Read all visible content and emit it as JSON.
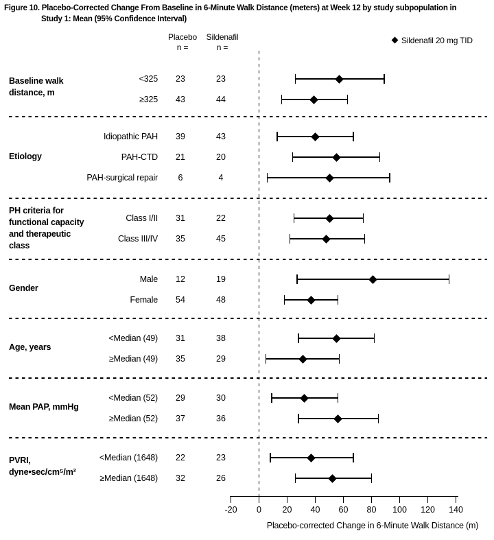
{
  "title": {
    "line1": "Figure 10. Placebo-Corrected Change From Baseline in 6-Minute Walk Distance (meters) at Week 12 by study subpopulation in",
    "line2": "Study 1: Mean (95% Confidence Interval)"
  },
  "legend": {
    "marker_icon": "diamond-icon",
    "label": "Sildenafil 20 mg TID"
  },
  "columns": {
    "placebo": {
      "name": "Placebo",
      "sub": "n ="
    },
    "sildenafil": {
      "name": "Sildenafil",
      "sub": "n ="
    }
  },
  "colors": {
    "foreground": "#000000",
    "background": "#ffffff"
  },
  "chart_data": {
    "type": "scatter",
    "subtype": "forest-plot",
    "marker": "diamond",
    "error_bars": "95% Confidence Interval",
    "title": "Placebo-Corrected Change From Baseline in 6-Minute Walk Distance (meters) at Week 12 by study subpopulation in Study 1: Mean (95% Confidence Interval)",
    "xlabel": "Placebo-corrected Change in 6-Minute Walk Distance (m)",
    "xlim": [
      -20,
      140
    ],
    "x_ticks": [
      -20,
      0,
      20,
      40,
      60,
      80,
      100,
      120,
      140
    ],
    "zero_reference_line": 0,
    "grid": false,
    "legend_position": "top-right",
    "groups": [
      {
        "label_lines": [
          "Baseline walk",
          "distance, m"
        ],
        "rows": [
          {
            "subgroup": "<325",
            "placebo_n": 23,
            "sildenafil_n": 23,
            "mean": 57,
            "ci_low": 26,
            "ci_high": 89
          },
          {
            "subgroup": "≥325",
            "placebo_n": 43,
            "sildenafil_n": 44,
            "mean": 39,
            "ci_low": 16,
            "ci_high": 63
          }
        ]
      },
      {
        "label_lines": [
          "Etiology"
        ],
        "rows": [
          {
            "subgroup": "Idiopathic PAH",
            "placebo_n": 39,
            "sildenafil_n": 43,
            "mean": 40,
            "ci_low": 13,
            "ci_high": 67
          },
          {
            "subgroup": "PAH-CTD",
            "placebo_n": 21,
            "sildenafil_n": 20,
            "mean": 55,
            "ci_low": 24,
            "ci_high": 86
          },
          {
            "subgroup": "PAH-surgical repair",
            "placebo_n": 6,
            "sildenafil_n": 4,
            "mean": 50,
            "ci_low": 6,
            "ci_high": 93
          }
        ]
      },
      {
        "label_lines": [
          "PH criteria for",
          "functional capacity",
          "and therapeutic",
          "class"
        ],
        "rows": [
          {
            "subgroup": "Class I/II",
            "placebo_n": 31,
            "sildenafil_n": 22,
            "mean": 50,
            "ci_low": 25,
            "ci_high": 74
          },
          {
            "subgroup": "Class III/IV",
            "placebo_n": 35,
            "sildenafil_n": 45,
            "mean": 48,
            "ci_low": 22,
            "ci_high": 75
          }
        ]
      },
      {
        "label_lines": [
          "Gender"
        ],
        "rows": [
          {
            "subgroup": "Male",
            "placebo_n": 12,
            "sildenafil_n": 19,
            "mean": 81,
            "ci_low": 27,
            "ci_high": 135
          },
          {
            "subgroup": "Female",
            "placebo_n": 54,
            "sildenafil_n": 48,
            "mean": 37,
            "ci_low": 18,
            "ci_high": 56
          }
        ]
      },
      {
        "label_lines": [
          "Age, years"
        ],
        "rows": [
          {
            "subgroup": "<Median (49)",
            "placebo_n": 31,
            "sildenafil_n": 38,
            "mean": 55,
            "ci_low": 28,
            "ci_high": 82
          },
          {
            "subgroup": "≥Median (49)",
            "placebo_n": 35,
            "sildenafil_n": 29,
            "mean": 31,
            "ci_low": 5,
            "ci_high": 57
          }
        ]
      },
      {
        "label_lines": [
          "Mean PAP, mmHg"
        ],
        "rows": [
          {
            "subgroup": "<Median (52)",
            "placebo_n": 29,
            "sildenafil_n": 30,
            "mean": 32,
            "ci_low": 9,
            "ci_high": 56
          },
          {
            "subgroup": "≥Median (52)",
            "placebo_n": 37,
            "sildenafil_n": 36,
            "mean": 56,
            "ci_low": 28,
            "ci_high": 85
          }
        ]
      },
      {
        "label_lines": [
          "PVRI,",
          "dyne•sec/cm⁵/m²"
        ],
        "rows": [
          {
            "subgroup": "<Median (1648)",
            "placebo_n": 22,
            "sildenafil_n": 23,
            "mean": 37,
            "ci_low": 8,
            "ci_high": 67
          },
          {
            "subgroup": "≥Median (1648)",
            "placebo_n": 32,
            "sildenafil_n": 26,
            "mean": 52,
            "ci_low": 26,
            "ci_high": 80
          }
        ]
      }
    ]
  }
}
